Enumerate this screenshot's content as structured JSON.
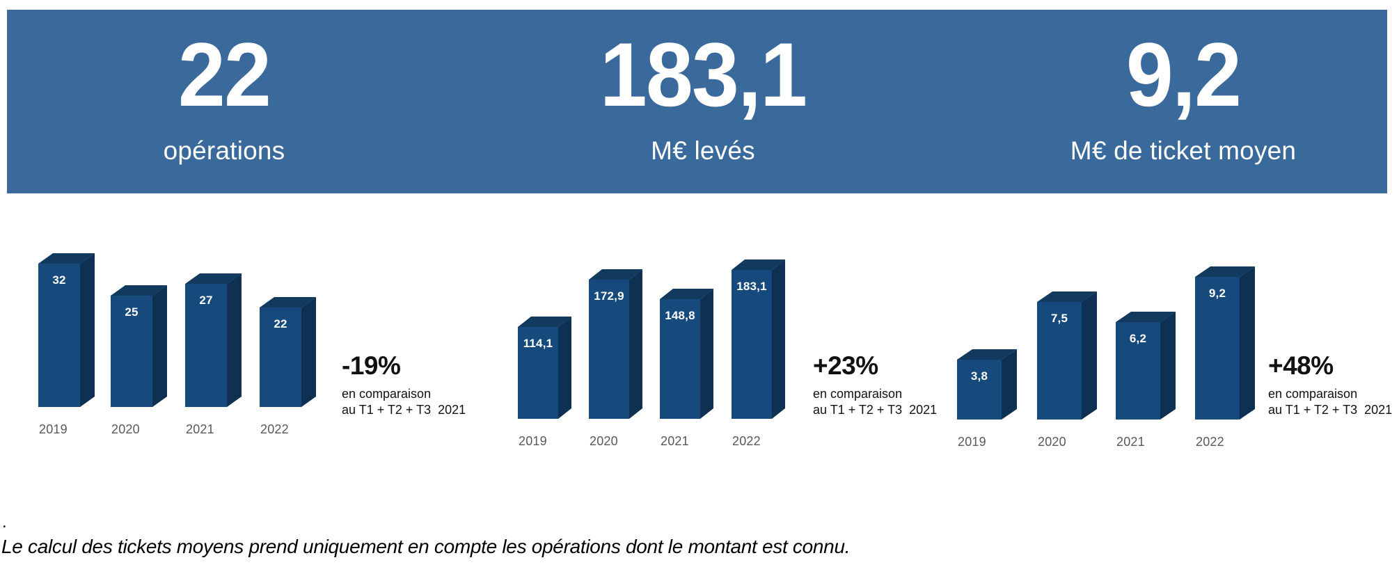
{
  "banner": {
    "bg_color": "#3A699B",
    "stats": [
      {
        "value": "22",
        "label": "opérations"
      },
      {
        "value": "183,1",
        "label": "M€ levés"
      },
      {
        "value": "9,2",
        "label": "M€ de ticket moyen"
      }
    ]
  },
  "chart_data": [
    {
      "type": "bar",
      "title": "opérations",
      "categories": [
        "2019",
        "2020",
        "2021",
        "2022"
      ],
      "values": [
        32,
        25,
        27,
        22
      ],
      "value_labels": [
        "32",
        "25",
        "27",
        "22"
      ],
      "ylim": [
        0,
        32
      ],
      "grid": false,
      "comparison": {
        "pct": "-19%",
        "line1": "en comparaison",
        "line2": "au T1 + T2 + T3  2021"
      }
    },
    {
      "type": "bar",
      "title": "M€ levés",
      "categories": [
        "2019",
        "2020",
        "2021",
        "2022"
      ],
      "values": [
        114.1,
        172.9,
        148.8,
        183.1
      ],
      "value_labels": [
        "114,1",
        "172,9",
        "148,8",
        "183,1"
      ],
      "ylim": [
        0,
        185
      ],
      "grid": false,
      "comparison": {
        "pct": "+23%",
        "line1": "en comparaison",
        "line2": "au T1 + T2 + T3  2021"
      }
    },
    {
      "type": "bar",
      "title": "M€ de ticket moyen",
      "categories": [
        "2019",
        "2020",
        "2021",
        "2022"
      ],
      "values": [
        3.8,
        7.5,
        6.2,
        9.2
      ],
      "value_labels": [
        "3,8",
        "7,5",
        "6,2",
        "9,2"
      ],
      "ylim": [
        0,
        9.3
      ],
      "grid": false,
      "comparison": {
        "pct": "+48%",
        "line1": "en comparaison",
        "line2": "au T1 + T2 + T3  2021"
      }
    }
  ],
  "footnote": {
    "dot": ".",
    "text": "Le calcul des tickets moyens prend uniquement en compte les opérations dont le montant est connu."
  },
  "colors": {
    "banner": "#3A699B",
    "bar_front": "#174A7C",
    "bar_top": "#123A5F",
    "bar_side": "#0E3052",
    "year_label": "#595959"
  }
}
